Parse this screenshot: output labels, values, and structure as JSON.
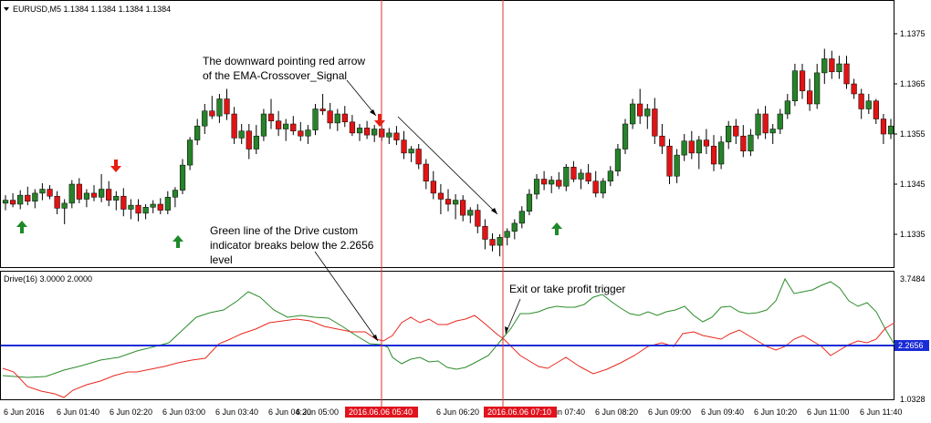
{
  "chart": {
    "title": "EURUSD,M5  1.1384 1.1384 1.1384 1.1384",
    "indicator_label": "Drive(16) 3.0000 2.0000"
  },
  "colors": {
    "bull": "#27822a",
    "bear": "#e01414",
    "arrow_up": "#1d8a2a",
    "arrow_down": "#e81c10",
    "green_line": "#2c8c2c",
    "red_line": "#e8281e",
    "level_line": "#1a2bd6",
    "marker_line": "#e23030",
    "marker_label_bg": "#e0141e"
  },
  "annotations": {
    "arrow_note_line1": "The downward pointing red arrow",
    "arrow_note_line2": "of the EMA-Crossover_Signal",
    "drive_note_line1": "Green line of the Drive custom",
    "drive_note_line2": "indicator breaks below the 2.2656",
    "drive_note_line3": "level",
    "exit_note": "Exit or take profit trigger"
  },
  "price_axis": {
    "labels": [
      "1.1375",
      "1.1365",
      "1.1355",
      "1.1345",
      "1.1335"
    ],
    "values": [
      1.1375,
      1.1365,
      1.1355,
      1.1345,
      1.1335
    ]
  },
  "indicator_axis": {
    "top_label": "3.7484",
    "bottom_label": "1.0328",
    "level_label": "2.2656",
    "top": 3.7484,
    "bottom": 1.0328,
    "level": 2.2656
  },
  "time_axis": {
    "labels": [
      "6 Jun 2016",
      "6 Jun 01:40",
      "6 Jun 02:20",
      "6 Jun 03:00",
      "6 Jun 03:40",
      "6 Jun 04:20",
      "6 Jun 05:00",
      "6 Jun 06:20",
      "6 Jun 07:40",
      "6 Jun 08:20",
      "6 Jun 09:00",
      "6 Jun 09:40",
      "6 Jun 10:20",
      "6 Jun 11:00",
      "6 Jun 11:40"
    ],
    "markers": [
      "2016.06.06 05:40",
      "2016.06.06 07:10"
    ]
  },
  "chart_data": {
    "type": "candlestick",
    "symbol": "EURUSD,M5",
    "ylim": [
      1.1329,
      1.1381
    ],
    "candles": [
      {
        "o": 1.13412,
        "h": 1.13428,
        "l": 1.13398,
        "c": 1.13418
      },
      {
        "o": 1.13418,
        "h": 1.13432,
        "l": 1.13404,
        "c": 1.1341
      },
      {
        "o": 1.1341,
        "h": 1.13438,
        "l": 1.134,
        "c": 1.13428
      },
      {
        "o": 1.13428,
        "h": 1.13445,
        "l": 1.13408,
        "c": 1.13416
      },
      {
        "o": 1.13416,
        "h": 1.1344,
        "l": 1.13402,
        "c": 1.13432
      },
      {
        "o": 1.13432,
        "h": 1.13452,
        "l": 1.13418,
        "c": 1.1344
      },
      {
        "o": 1.1344,
        "h": 1.13448,
        "l": 1.1342,
        "c": 1.13426
      },
      {
        "o": 1.13426,
        "h": 1.13436,
        "l": 1.1339,
        "c": 1.13402
      },
      {
        "o": 1.13402,
        "h": 1.1342,
        "l": 1.1337,
        "c": 1.13412
      },
      {
        "o": 1.13412,
        "h": 1.13458,
        "l": 1.13402,
        "c": 1.1345
      },
      {
        "o": 1.1345,
        "h": 1.13462,
        "l": 1.13412,
        "c": 1.1342
      },
      {
        "o": 1.1342,
        "h": 1.1344,
        "l": 1.13404,
        "c": 1.13432
      },
      {
        "o": 1.13432,
        "h": 1.13448,
        "l": 1.13416,
        "c": 1.13424
      },
      {
        "o": 1.13424,
        "h": 1.1347,
        "l": 1.13414,
        "c": 1.1344
      },
      {
        "o": 1.1344,
        "h": 1.13456,
        "l": 1.13406,
        "c": 1.13418
      },
      {
        "o": 1.13418,
        "h": 1.13436,
        "l": 1.13398,
        "c": 1.13426
      },
      {
        "o": 1.13426,
        "h": 1.13442,
        "l": 1.13386,
        "c": 1.134
      },
      {
        "o": 1.134,
        "h": 1.1342,
        "l": 1.1338,
        "c": 1.13408
      },
      {
        "o": 1.13408,
        "h": 1.1342,
        "l": 1.13376,
        "c": 1.13392
      },
      {
        "o": 1.13392,
        "h": 1.1341,
        "l": 1.1338,
        "c": 1.13404
      },
      {
        "o": 1.13404,
        "h": 1.13418,
        "l": 1.13392,
        "c": 1.1341
      },
      {
        "o": 1.1341,
        "h": 1.13422,
        "l": 1.1339,
        "c": 1.13398
      },
      {
        "o": 1.13398,
        "h": 1.13436,
        "l": 1.1339,
        "c": 1.13424
      },
      {
        "o": 1.13424,
        "h": 1.13444,
        "l": 1.13404,
        "c": 1.13438
      },
      {
        "o": 1.13438,
        "h": 1.135,
        "l": 1.1343,
        "c": 1.13488
      },
      {
        "o": 1.13488,
        "h": 1.13544,
        "l": 1.13478,
        "c": 1.13538
      },
      {
        "o": 1.13538,
        "h": 1.1358,
        "l": 1.13528,
        "c": 1.13566
      },
      {
        "o": 1.13566,
        "h": 1.1361,
        "l": 1.1355,
        "c": 1.13596
      },
      {
        "o": 1.13596,
        "h": 1.13626,
        "l": 1.1358,
        "c": 1.13586
      },
      {
        "o": 1.13586,
        "h": 1.1363,
        "l": 1.13572,
        "c": 1.1362
      },
      {
        "o": 1.1362,
        "h": 1.1364,
        "l": 1.13578,
        "c": 1.1359
      },
      {
        "o": 1.1359,
        "h": 1.13604,
        "l": 1.1353,
        "c": 1.13542
      },
      {
        "o": 1.13542,
        "h": 1.1357,
        "l": 1.1353,
        "c": 1.13556
      },
      {
        "o": 1.13556,
        "h": 1.1357,
        "l": 1.135,
        "c": 1.1352
      },
      {
        "o": 1.1352,
        "h": 1.13568,
        "l": 1.1351,
        "c": 1.13546
      },
      {
        "o": 1.13546,
        "h": 1.136,
        "l": 1.13536,
        "c": 1.1359
      },
      {
        "o": 1.1359,
        "h": 1.1362,
        "l": 1.1356,
        "c": 1.13576
      },
      {
        "o": 1.13576,
        "h": 1.13596,
        "l": 1.13546,
        "c": 1.1356
      },
      {
        "o": 1.1356,
        "h": 1.1358,
        "l": 1.13536,
        "c": 1.1357
      },
      {
        "o": 1.1357,
        "h": 1.13586,
        "l": 1.13548,
        "c": 1.13556
      },
      {
        "o": 1.13556,
        "h": 1.13574,
        "l": 1.13536,
        "c": 1.13546
      },
      {
        "o": 1.13546,
        "h": 1.13568,
        "l": 1.1353,
        "c": 1.13558
      },
      {
        "o": 1.13558,
        "h": 1.1361,
        "l": 1.13548,
        "c": 1.136
      },
      {
        "o": 1.136,
        "h": 1.1363,
        "l": 1.13588,
        "c": 1.13596
      },
      {
        "o": 1.13596,
        "h": 1.13612,
        "l": 1.1356,
        "c": 1.13572
      },
      {
        "o": 1.13572,
        "h": 1.136,
        "l": 1.13556,
        "c": 1.1359
      },
      {
        "o": 1.1359,
        "h": 1.13606,
        "l": 1.13564,
        "c": 1.13574
      },
      {
        "o": 1.13574,
        "h": 1.13588,
        "l": 1.13546,
        "c": 1.13552
      },
      {
        "o": 1.13552,
        "h": 1.1357,
        "l": 1.13536,
        "c": 1.13562
      },
      {
        "o": 1.13562,
        "h": 1.13576,
        "l": 1.1354,
        "c": 1.13548
      },
      {
        "o": 1.13548,
        "h": 1.13568,
        "l": 1.13534,
        "c": 1.1356
      },
      {
        "o": 1.1356,
        "h": 1.13572,
        "l": 1.13536,
        "c": 1.13544
      },
      {
        "o": 1.13544,
        "h": 1.13562,
        "l": 1.1353,
        "c": 1.13552
      },
      {
        "o": 1.13552,
        "h": 1.13566,
        "l": 1.13528,
        "c": 1.13538
      },
      {
        "o": 1.13538,
        "h": 1.13556,
        "l": 1.135,
        "c": 1.13512
      },
      {
        "o": 1.13512,
        "h": 1.13526,
        "l": 1.13494,
        "c": 1.1352
      },
      {
        "o": 1.1352,
        "h": 1.1353,
        "l": 1.1348,
        "c": 1.1349
      },
      {
        "o": 1.1349,
        "h": 1.135,
        "l": 1.1344,
        "c": 1.13456
      },
      {
        "o": 1.13456,
        "h": 1.13476,
        "l": 1.1342,
        "c": 1.13432
      },
      {
        "o": 1.13432,
        "h": 1.1345,
        "l": 1.1339,
        "c": 1.1342
      },
      {
        "o": 1.1342,
        "h": 1.1344,
        "l": 1.13396,
        "c": 1.1341
      },
      {
        "o": 1.1341,
        "h": 1.1343,
        "l": 1.1338,
        "c": 1.13418
      },
      {
        "o": 1.13418,
        "h": 1.13428,
        "l": 1.13376,
        "c": 1.13388
      },
      {
        "o": 1.13388,
        "h": 1.13404,
        "l": 1.13372,
        "c": 1.13398
      },
      {
        "o": 1.13398,
        "h": 1.1341,
        "l": 1.13352,
        "c": 1.13366
      },
      {
        "o": 1.13366,
        "h": 1.1338,
        "l": 1.1332,
        "c": 1.1334
      },
      {
        "o": 1.1334,
        "h": 1.13352,
        "l": 1.13316,
        "c": 1.13328
      },
      {
        "o": 1.13328,
        "h": 1.1335,
        "l": 1.13306,
        "c": 1.13344
      },
      {
        "o": 1.13344,
        "h": 1.13362,
        "l": 1.13328,
        "c": 1.13356
      },
      {
        "o": 1.13356,
        "h": 1.1338,
        "l": 1.1334,
        "c": 1.13372
      },
      {
        "o": 1.13372,
        "h": 1.13406,
        "l": 1.13362,
        "c": 1.13396
      },
      {
        "o": 1.13396,
        "h": 1.1344,
        "l": 1.13388,
        "c": 1.1343
      },
      {
        "o": 1.1343,
        "h": 1.1347,
        "l": 1.1342,
        "c": 1.1346
      },
      {
        "o": 1.1346,
        "h": 1.13476,
        "l": 1.13438,
        "c": 1.1345
      },
      {
        "o": 1.1345,
        "h": 1.13466,
        "l": 1.13432,
        "c": 1.13458
      },
      {
        "o": 1.13458,
        "h": 1.13474,
        "l": 1.1344,
        "c": 1.13446
      },
      {
        "o": 1.13446,
        "h": 1.1349,
        "l": 1.13436,
        "c": 1.13484
      },
      {
        "o": 1.13484,
        "h": 1.13496,
        "l": 1.13454,
        "c": 1.1346
      },
      {
        "o": 1.1346,
        "h": 1.1348,
        "l": 1.1344,
        "c": 1.13472
      },
      {
        "o": 1.13472,
        "h": 1.1349,
        "l": 1.1345,
        "c": 1.13456
      },
      {
        "o": 1.13456,
        "h": 1.13476,
        "l": 1.13424,
        "c": 1.13432
      },
      {
        "o": 1.13432,
        "h": 1.13462,
        "l": 1.13422,
        "c": 1.13456
      },
      {
        "o": 1.13456,
        "h": 1.13486,
        "l": 1.13446,
        "c": 1.13476
      },
      {
        "o": 1.13476,
        "h": 1.1353,
        "l": 1.13466,
        "c": 1.1352
      },
      {
        "o": 1.1352,
        "h": 1.1358,
        "l": 1.1351,
        "c": 1.1357
      },
      {
        "o": 1.1357,
        "h": 1.1362,
        "l": 1.1356,
        "c": 1.1361
      },
      {
        "o": 1.1361,
        "h": 1.1364,
        "l": 1.1357,
        "c": 1.13586
      },
      {
        "o": 1.13586,
        "h": 1.1361,
        "l": 1.1356,
        "c": 1.136
      },
      {
        "o": 1.136,
        "h": 1.13622,
        "l": 1.1353,
        "c": 1.13546
      },
      {
        "o": 1.13546,
        "h": 1.1357,
        "l": 1.1351,
        "c": 1.13526
      },
      {
        "o": 1.13526,
        "h": 1.1354,
        "l": 1.1345,
        "c": 1.13466
      },
      {
        "o": 1.13466,
        "h": 1.1352,
        "l": 1.13452,
        "c": 1.13508
      },
      {
        "o": 1.13508,
        "h": 1.1355,
        "l": 1.13496,
        "c": 1.13536
      },
      {
        "o": 1.13536,
        "h": 1.13556,
        "l": 1.135,
        "c": 1.13512
      },
      {
        "o": 1.13512,
        "h": 1.13546,
        "l": 1.1348,
        "c": 1.13538
      },
      {
        "o": 1.13538,
        "h": 1.1356,
        "l": 1.1351,
        "c": 1.13526
      },
      {
        "o": 1.13526,
        "h": 1.13548,
        "l": 1.13476,
        "c": 1.1349
      },
      {
        "o": 1.1349,
        "h": 1.13546,
        "l": 1.1348,
        "c": 1.13534
      },
      {
        "o": 1.13534,
        "h": 1.13576,
        "l": 1.1352,
        "c": 1.13566
      },
      {
        "o": 1.13566,
        "h": 1.1358,
        "l": 1.1353,
        "c": 1.13546
      },
      {
        "o": 1.13546,
        "h": 1.13568,
        "l": 1.13504,
        "c": 1.13516
      },
      {
        "o": 1.13516,
        "h": 1.1356,
        "l": 1.13506,
        "c": 1.13548
      },
      {
        "o": 1.13548,
        "h": 1.136,
        "l": 1.1354,
        "c": 1.1359
      },
      {
        "o": 1.1359,
        "h": 1.13606,
        "l": 1.1354,
        "c": 1.13552
      },
      {
        "o": 1.13552,
        "h": 1.1357,
        "l": 1.1353,
        "c": 1.1356
      },
      {
        "o": 1.1356,
        "h": 1.136,
        "l": 1.1355,
        "c": 1.1359
      },
      {
        "o": 1.1359,
        "h": 1.1363,
        "l": 1.1358,
        "c": 1.13616
      },
      {
        "o": 1.13616,
        "h": 1.1369,
        "l": 1.13606,
        "c": 1.13676
      },
      {
        "o": 1.13676,
        "h": 1.1369,
        "l": 1.1362,
        "c": 1.13636
      },
      {
        "o": 1.13636,
        "h": 1.1366,
        "l": 1.13596,
        "c": 1.1361
      },
      {
        "o": 1.1361,
        "h": 1.1369,
        "l": 1.136,
        "c": 1.13672
      },
      {
        "o": 1.13672,
        "h": 1.1372,
        "l": 1.1365,
        "c": 1.137
      },
      {
        "o": 1.137,
        "h": 1.13716,
        "l": 1.1366,
        "c": 1.13674
      },
      {
        "o": 1.13674,
        "h": 1.13706,
        "l": 1.1366,
        "c": 1.1369
      },
      {
        "o": 1.1369,
        "h": 1.13706,
        "l": 1.1364,
        "c": 1.1365
      },
      {
        "o": 1.1365,
        "h": 1.1366,
        "l": 1.1362,
        "c": 1.1363
      },
      {
        "o": 1.1363,
        "h": 1.1364,
        "l": 1.1358,
        "c": 1.136
      },
      {
        "o": 1.136,
        "h": 1.1363,
        "l": 1.1359,
        "c": 1.13616
      },
      {
        "o": 1.13616,
        "h": 1.1362,
        "l": 1.1357,
        "c": 1.1358
      },
      {
        "o": 1.1358,
        "h": 1.1359,
        "l": 1.1353,
        "c": 1.1355
      },
      {
        "o": 1.1355,
        "h": 1.1358,
        "l": 1.1354,
        "c": 1.13566
      }
    ]
  }
}
